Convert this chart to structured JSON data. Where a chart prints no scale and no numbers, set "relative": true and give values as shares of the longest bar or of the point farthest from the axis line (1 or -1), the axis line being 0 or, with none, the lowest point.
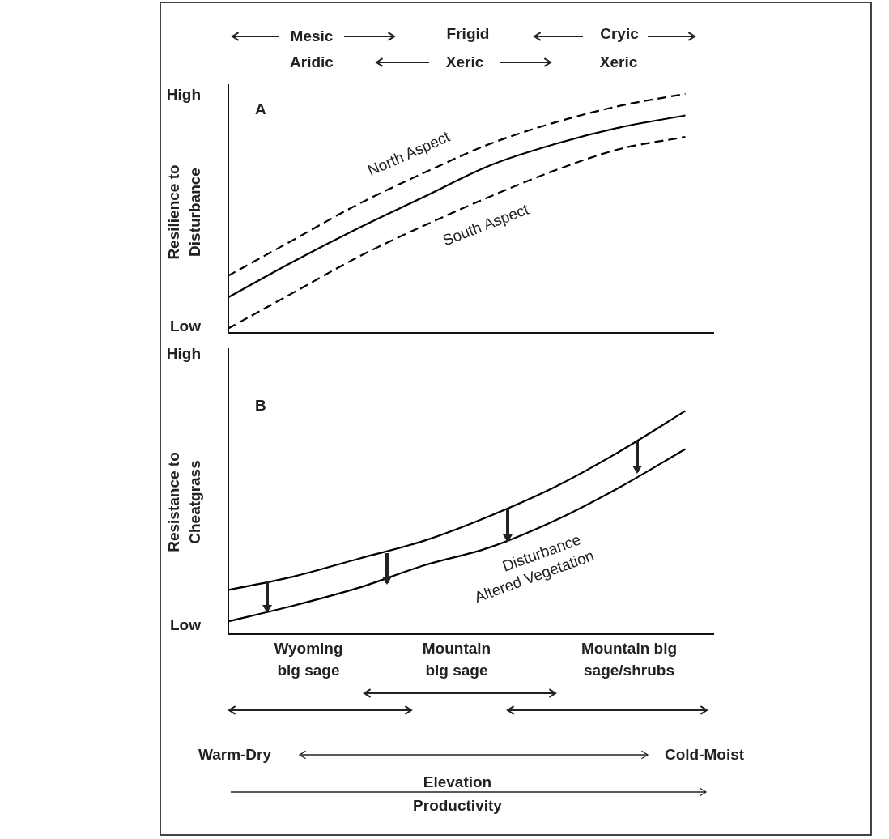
{
  "chart_data": [
    {
      "type": "line",
      "title": "A",
      "ylabel": "Resilience to Disturbance",
      "relative": true,
      "marker": "none",
      "categories": [
        null,
        null,
        null,
        null,
        null,
        null,
        null,
        null
      ],
      "series": [
        {
          "name": "North Aspect",
          "color": "#000000",
          "line_style": "dashed",
          "values": [
            0.24,
            0.39,
            0.54,
            0.67,
            0.79,
            0.88,
            0.95,
            1
          ]
        },
        {
          "color": "#000000",
          "line_style": "solid",
          "values": [
            0.15,
            0.3,
            0.44,
            0.57,
            0.7,
            0.79,
            0.86,
            0.91
          ]
        },
        {
          "name": "South Aspect",
          "color": "#000000",
          "line_style": "dashed",
          "values": [
            0.02,
            0.17,
            0.32,
            0.45,
            0.57,
            0.68,
            0.77,
            0.82
          ]
        }
      ],
      "annotations": [
        "High",
        "Low",
        "Mesic",
        "Aridic",
        "Frigid",
        "Xeric",
        "Cryic",
        "Xeric"
      ]
    },
    {
      "type": "line",
      "title": "B",
      "ylabel": "Resistance to Cheatgrass",
      "relative": true,
      "marker": "none",
      "categories": [
        null,
        null,
        null,
        null,
        null,
        null,
        null,
        null
      ],
      "series": [
        {
          "color": "#000000",
          "line_style": "solid",
          "values": [
            0.2,
            0.26,
            0.34,
            0.42,
            0.53,
            0.66,
            0.82,
            1
          ]
        },
        {
          "name": "Altered Vegetation",
          "color": "#000000",
          "line_style": "solid",
          "values": [
            0.06,
            0.13,
            0.21,
            0.31,
            0.39,
            0.51,
            0.66,
            0.83
          ]
        }
      ],
      "annotations": [
        "High",
        "Low",
        "Disturbance",
        "Wyoming big sage",
        "Mountain big sage",
        "Mountain big sage/shrubs",
        "Warm-Dry",
        "Cold-Moist",
        "Elevation",
        "Productivity"
      ]
    }
  ]
}
